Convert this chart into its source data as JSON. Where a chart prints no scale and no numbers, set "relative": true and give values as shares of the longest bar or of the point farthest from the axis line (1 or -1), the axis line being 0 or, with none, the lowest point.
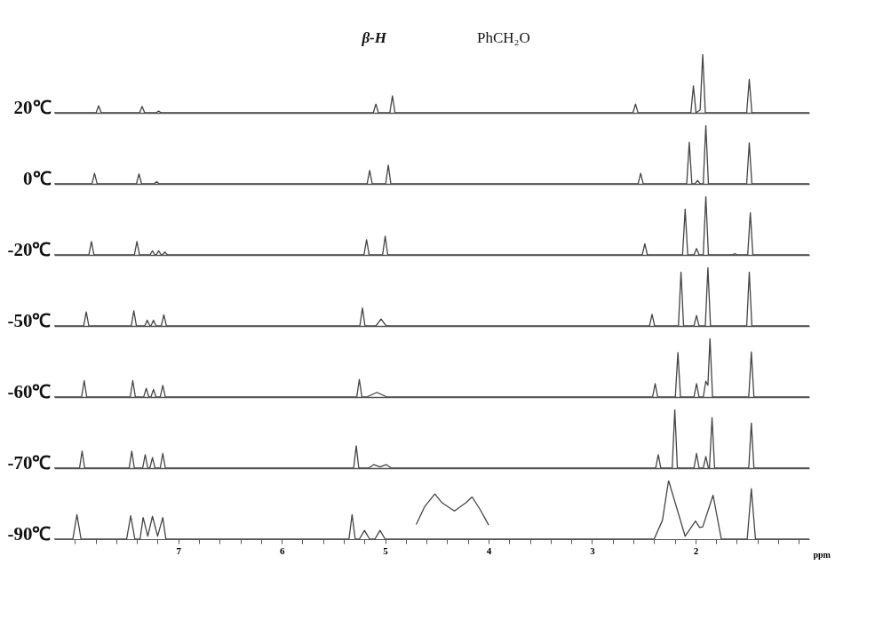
{
  "chart_data": [
    {
      "type": "line",
      "relative": true,
      "ylabel": "20℃",
      "xlim": [
        8.2,
        0.9
      ],
      "tick_labels": false,
      "annotations": [
        "β-H",
        "PhCH₂O"
      ],
      "x": [
        8.2,
        7.795,
        7.77,
        7.745,
        7.375,
        7.35,
        7.325,
        7.215,
        7.19,
        7.165,
        5.115,
        5.09,
        5.065,
        4.955,
        4.93,
        4.905,
        2.605,
        2.58,
        2.555,
        2.045,
        2.02,
        1.995,
        1.955,
        1.93,
        1.905,
        1.505,
        1.48,
        1.455,
        0.9
      ],
      "series": [
        {
          "color": "#444444",
          "values": [
            0,
            0,
            0.12,
            0,
            0,
            0.11,
            0,
            0,
            0.03,
            0,
            0,
            0.15,
            0,
            0,
            0.29,
            0,
            0,
            0.15,
            0,
            0,
            0.46,
            0,
            0.05,
            1,
            0,
            0,
            0.57,
            0,
            0
          ]
        }
      ]
    },
    {
      "type": "line",
      "relative": true,
      "ylabel": "0℃",
      "xlim": [
        8.2,
        0.9
      ],
      "tick_labels": false,
      "x": [
        8.2,
        7.835,
        7.81,
        7.785,
        7.405,
        7.38,
        7.355,
        7.235,
        7.21,
        7.185,
        5.175,
        5.15,
        5.125,
        4.995,
        4.97,
        4.945,
        2.555,
        2.53,
        2.505,
        2.085,
        2.06,
        2.035,
        2.005,
        1.98,
        1.955,
        1.925,
        1.9,
        1.875,
        1.505,
        1.48,
        1.455,
        0.9
      ],
      "series": [
        {
          "color": "#444444",
          "values": [
            0,
            0,
            0.18,
            0,
            0,
            0.17,
            0,
            0,
            0.04,
            0,
            0,
            0.23,
            0,
            0,
            0.32,
            0,
            0,
            0.18,
            0,
            0,
            0.71,
            0,
            0,
            0.06,
            0,
            0,
            1,
            0,
            0,
            0.7,
            0,
            0
          ]
        }
      ]
    },
    {
      "type": "line",
      "relative": true,
      "ylabel": "-20℃",
      "xlim": [
        8.2,
        0.9
      ],
      "tick_labels": false,
      "x": [
        8.2,
        7.865,
        7.84,
        7.815,
        7.425,
        7.4,
        7.375,
        7.275,
        7.25,
        7.225,
        7.215,
        7.19,
        7.165,
        7.155,
        7.13,
        7.105,
        5.205,
        5.18,
        5.155,
        5.025,
        5.0,
        4.975,
        2.515,
        2.49,
        2.465,
        2.125,
        2.1,
        2.075,
        2.015,
        1.99,
        1.965,
        1.925,
        1.9,
        1.875,
        1.645,
        1.62,
        1.595,
        1.495,
        1.47,
        1.445,
        0.9
      ],
      "series": [
        {
          "color": "#444444",
          "values": [
            0,
            0,
            0.23,
            0,
            0,
            0.23,
            0,
            0,
            0.07,
            0,
            0,
            0.07,
            0,
            0,
            0.05,
            0,
            0,
            0.26,
            0,
            0,
            0.32,
            0,
            0,
            0.19,
            0,
            0,
            0.78,
            0,
            0,
            0.11,
            0,
            0,
            1,
            0,
            0,
            0.02,
            0,
            0,
            0.72,
            0,
            0
          ]
        }
      ]
    },
    {
      "type": "line",
      "relative": true,
      "ylabel": "-50℃",
      "xlim": [
        8.2,
        0.9
      ],
      "tick_labels": false,
      "x": [
        8.2,
        7.915,
        7.89,
        7.865,
        7.455,
        7.43,
        7.405,
        7.325,
        7.3,
        7.275,
        7.265,
        7.24,
        7.215,
        7.165,
        7.14,
        7.115,
        5.245,
        5.22,
        5.195,
        5.09,
        5.04,
        4.99,
        2.445,
        2.42,
        2.395,
        2.165,
        2.14,
        2.115,
        2.015,
        1.99,
        1.965,
        1.905,
        1.88,
        1.855,
        1.505,
        1.48,
        1.455,
        0.9
      ],
      "series": [
        {
          "color": "#444444",
          "values": [
            0,
            0,
            0.24,
            0,
            0,
            0.26,
            0,
            0,
            0.1,
            0,
            0,
            0.1,
            0,
            0,
            0.19,
            0,
            0,
            0.31,
            0,
            0,
            0.12,
            0,
            0,
            0.2,
            0,
            0,
            0.92,
            0,
            0,
            0.18,
            0,
            0,
            1,
            0,
            0,
            0.92,
            0,
            0
          ]
        }
      ]
    },
    {
      "type": "line",
      "relative": true,
      "ylabel": "-60℃",
      "xlim": [
        8.2,
        0.9
      ],
      "tick_labels": false,
      "x": [
        8.2,
        7.935,
        7.91,
        7.885,
        7.465,
        7.44,
        7.415,
        7.335,
        7.31,
        7.285,
        7.265,
        7.24,
        7.215,
        7.175,
        7.15,
        7.125,
        5.275,
        5.25,
        5.225,
        5.18,
        5.08,
        4.98,
        2.415,
        2.39,
        2.365,
        2.195,
        2.17,
        2.145,
        2.015,
        1.99,
        1.965,
        1.925,
        1.9,
        1.88,
        1.86,
        1.835,
        1.485,
        1.46,
        1.435,
        0.9
      ],
      "series": [
        {
          "color": "#444444",
          "values": [
            0,
            0,
            0.28,
            0,
            0,
            0.28,
            0,
            0,
            0.15,
            0,
            0,
            0.13,
            0,
            0,
            0.2,
            0,
            0,
            0.3,
            0,
            0,
            0.08,
            0,
            0,
            0.23,
            0,
            0,
            0.76,
            0,
            0,
            0.23,
            0,
            0,
            0.27,
            0.2,
            1,
            0,
            0,
            0.77,
            0,
            0
          ]
        }
      ]
    },
    {
      "type": "line",
      "relative": true,
      "ylabel": "-70℃",
      "xlim": [
        8.2,
        0.9
      ],
      "tick_labels": false,
      "x": [
        8.2,
        7.955,
        7.93,
        7.905,
        7.475,
        7.45,
        7.425,
        7.345,
        7.32,
        7.295,
        7.275,
        7.25,
        7.225,
        7.175,
        7.15,
        7.125,
        5.305,
        5.28,
        5.255,
        5.16,
        5.11,
        5.05,
        4.99,
        4.94,
        2.385,
        2.36,
        2.335,
        2.225,
        2.2,
        2.175,
        2.015,
        1.99,
        1.965,
        1.925,
        1.9,
        1.875,
        1.865,
        1.84,
        1.815,
        1.485,
        1.46,
        1.435,
        0.9
      ],
      "series": [
        {
          "color": "#444444",
          "values": [
            0,
            0,
            0.29,
            0,
            0,
            0.29,
            0,
            0,
            0.23,
            0,
            0,
            0.18,
            0,
            0,
            0.25,
            0,
            0,
            0.38,
            0,
            0,
            0.06,
            0.02,
            0.06,
            0,
            0,
            0.23,
            0,
            0,
            1,
            0,
            0,
            0.25,
            0,
            0,
            0.2,
            0,
            0,
            0.86,
            0,
            0,
            0.77,
            0,
            0
          ]
        }
      ]
    },
    {
      "type": "line",
      "relative": true,
      "ylabel": "-90℃",
      "xlabel": "ppm",
      "xlim": [
        8.2,
        0.9
      ],
      "tick_labels": "x",
      "xticks": [
        {
          "value": 8.0,
          "label": null
        },
        {
          "value": 7.8,
          "label": null
        },
        {
          "value": 7.6,
          "label": null
        },
        {
          "value": 7.4,
          "label": null
        },
        {
          "value": 7.2,
          "label": null
        },
        7,
        {
          "value": 6.8,
          "label": null
        },
        {
          "value": 6.6,
          "label": null
        },
        {
          "value": 6.4,
          "label": null
        },
        {
          "value": 6.2,
          "label": null
        },
        6,
        {
          "value": 5.8,
          "label": null
        },
        {
          "value": 5.6,
          "label": null
        },
        {
          "value": 5.4,
          "label": null
        },
        {
          "value": 5.2,
          "label": null
        },
        5,
        {
          "value": 4.8,
          "label": null
        },
        {
          "value": 4.6,
          "label": null
        },
        {
          "value": 4.4,
          "label": null
        },
        {
          "value": 4.2,
          "label": null
        },
        4,
        {
          "value": 3.8,
          "label": null
        },
        {
          "value": 3.6,
          "label": null
        },
        {
          "value": 3.4,
          "label": null
        },
        {
          "value": 3.2,
          "label": null
        },
        3,
        {
          "value": 2.8,
          "label": null
        },
        {
          "value": 2.6,
          "label": null
        },
        {
          "value": 2.4,
          "label": null
        },
        {
          "value": 2.2,
          "label": null
        },
        2,
        {
          "value": 1.8,
          "label": null
        },
        {
          "value": 1.6,
          "label": null
        },
        {
          "value": 1.4,
          "label": null
        },
        {
          "value": 1.2,
          "label": null
        },
        {
          "value": 1.0,
          "label": null
        }
      ],
      "x": [
        8.2,
        8.02,
        7.98,
        7.94,
        7.5,
        7.46,
        7.42,
        7.37,
        7.34,
        7.295,
        7.25,
        7.2,
        7.15,
        7.12,
        5.35,
        5.32,
        5.29,
        5.25,
        5.2,
        5.15,
        5.1,
        5.05,
        5.0,
        2.4,
        2.32,
        2.26,
        2.1,
        2.0,
        1.96,
        1.93,
        1.83,
        1.75,
        1.5,
        1.46,
        1.42,
        0.9
      ],
      "series": [
        {
          "color": "#444444",
          "values": [
            0,
            0,
            0.42,
            0,
            0,
            0.4,
            0,
            0,
            0.37,
            0.05,
            0.39,
            0.05,
            0.37,
            0,
            0,
            0.42,
            0,
            0,
            0.15,
            0,
            0,
            0.15,
            0,
            0,
            0.32,
            1,
            0.05,
            0.31,
            0.2,
            0.21,
            0.75,
            0,
            0,
            0.86,
            0,
            0
          ]
        },
        {
          "color": "#444444",
          "x": [
            4.7,
            4.62,
            4.52,
            4.45,
            4.33,
            4.22,
            4.16,
            4.08,
            4.0
          ],
          "values": [
            0.25,
            0.55,
            0.77,
            0.62,
            0.48,
            0.62,
            0.72,
            0.5,
            0.24
          ]
        }
      ]
    }
  ]
}
